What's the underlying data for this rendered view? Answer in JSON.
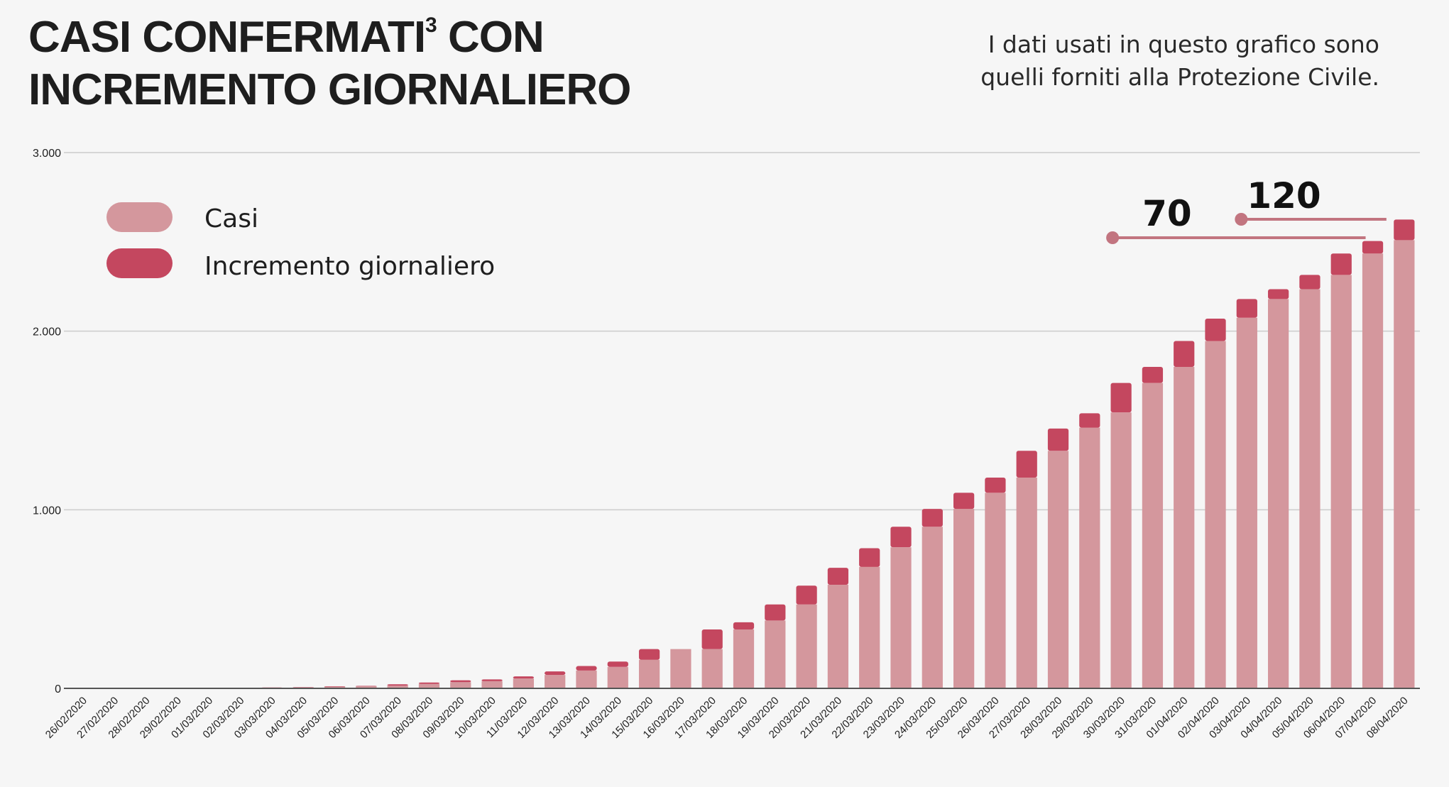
{
  "title": {
    "line1_part1": "CASI CONFERMATI",
    "superscript": "3",
    "line1_part2": " CON",
    "line2": "INCREMENTO GIORNALIERO"
  },
  "note": "I dati usati in questo grafico sono quelli forniti alla Protezione Civile.",
  "colors": {
    "casi": "#d4979d",
    "incremento": "#c4475f",
    "annotation_line": "#c27580",
    "grid": "#cccccc",
    "axis": "#555555",
    "text": "#1e1e1e"
  },
  "chart_data": {
    "type": "bar",
    "stacked": true,
    "categories": [
      "26/02/2020",
      "27/02/2020",
      "28/02/2020",
      "29/02/2020",
      "01/03/2020",
      "02/03/2020",
      "03/03/2020",
      "04/03/2020",
      "05/03/2020",
      "06/03/2020",
      "07/03/2020",
      "08/03/2020",
      "09/03/2020",
      "10/03/2020",
      "11/03/2020",
      "12/03/2020",
      "13/03/2020",
      "14/03/2020",
      "15/03/2020",
      "16/03/2020",
      "17/03/2020",
      "18/03/2020",
      "19/03/2020",
      "20/03/2020",
      "21/03/2020",
      "22/03/2020",
      "23/03/2020",
      "24/03/2020",
      "25/03/2020",
      "26/03/2020",
      "27/03/2020",
      "28/03/2020",
      "29/03/2020",
      "30/03/2020",
      "31/03/2020",
      "01/04/2020",
      "02/04/2020",
      "03/04/2020",
      "04/04/2020",
      "05/04/2020",
      "06/04/2020",
      "07/04/2020",
      "08/04/2020"
    ],
    "series": [
      {
        "name": "Casi",
        "values": [
          0,
          0,
          2,
          2,
          2,
          2,
          3,
          5,
          10,
          12,
          15,
          25,
          35,
          40,
          55,
          75,
          100,
          120,
          160,
          220,
          220,
          330,
          380,
          470,
          580,
          680,
          790,
          905,
          1005,
          1095,
          1180,
          1330,
          1460,
          1545,
          1710,
          1800,
          1945,
          2075,
          2180,
          2235,
          2315,
          2435,
          2510
        ]
      },
      {
        "name": "Incremento giornaliero",
        "values": [
          0,
          0,
          0,
          0,
          0,
          0,
          2,
          2,
          2,
          2,
          8,
          8,
          10,
          10,
          12,
          20,
          25,
          30,
          60,
          0,
          110,
          40,
          90,
          105,
          95,
          105,
          115,
          100,
          90,
          85,
          150,
          125,
          80,
          165,
          90,
          145,
          125,
          105,
          55,
          80,
          120,
          70,
          115
        ]
      }
    ],
    "ylim": [
      0,
      3000
    ],
    "yticks": [
      0,
      1000,
      2000,
      3000
    ],
    "ytick_labels": [
      "0",
      "1.000",
      "2.000",
      "3.000"
    ],
    "grid": true,
    "legend": {
      "placement": "top-left",
      "entries": [
        "Casi",
        "Incremento giornaliero"
      ]
    },
    "annotations": [
      {
        "label": "70",
        "from": "30/03/2020",
        "to": "07/04/2020"
      },
      {
        "label": "120",
        "from": "03/04/2020",
        "to": "08/04/2020"
      }
    ]
  }
}
